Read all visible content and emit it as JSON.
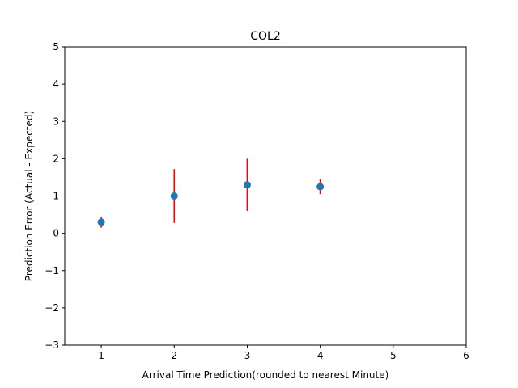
{
  "chart_data": {
    "type": "scatter",
    "title": "COL2",
    "xlabel": "Arrival Time Prediction(rounded to nearest Minute)",
    "ylabel": "Prediction Error (Actual - Expected)",
    "xlim": [
      0.5,
      6
    ],
    "ylim": [
      -3,
      5
    ],
    "xticks": [
      1,
      2,
      3,
      4,
      5,
      6
    ],
    "xtick_labels": [
      "1",
      "2",
      "3",
      "4",
      "5",
      "6"
    ],
    "yticks": [
      -3,
      -2,
      -1,
      0,
      1,
      2,
      3,
      4,
      5
    ],
    "ytick_labels": [
      "−3",
      "−2",
      "−1",
      "0",
      "1",
      "2",
      "3",
      "4",
      "5"
    ],
    "grid": false,
    "series": [
      {
        "x": [
          1,
          2,
          3,
          4
        ],
        "y": [
          0.3,
          1.0,
          1.3,
          1.25
        ],
        "yerr": [
          0.15,
          0.72,
          0.7,
          0.2
        ],
        "marker_color": "#1f77b4",
        "errorbar_color": "#ff0000"
      }
    ]
  }
}
